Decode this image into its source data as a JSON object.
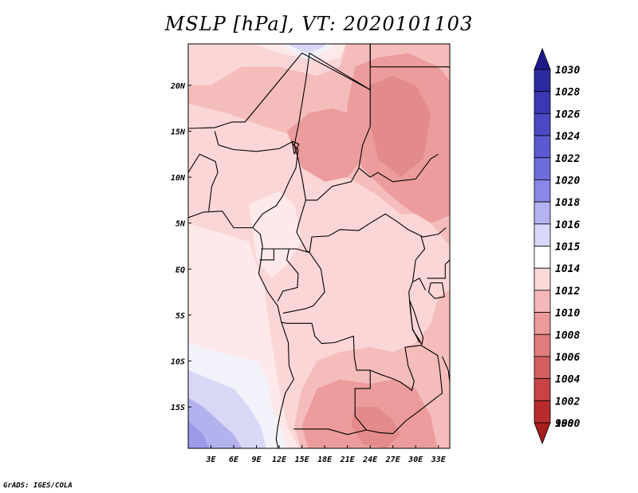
{
  "title": "MSLP [hPa], VT: 2020101103",
  "credit": "GrADS: IGES/COLA",
  "lat_labels": [
    "20N",
    "15N",
    "10N",
    "5N",
    "EQ",
    "5S",
    "10S",
    "15S"
  ],
  "lon_labels": [
    "3E",
    "6E",
    "9E",
    "12E",
    "15E",
    "18E",
    "21E",
    "24E",
    "27E",
    "30E",
    "33E"
  ],
  "colorbar": {
    "levels": [
      "1030",
      "1028",
      "1026",
      "1024",
      "1022",
      "1020",
      "1018",
      "1016",
      "1015",
      "1014",
      "1012",
      "1010",
      "1008",
      "1006",
      "1004",
      "1002",
      "1000",
      "998"
    ],
    "colors": [
      "#1d1a8c",
      "#2b2aa0",
      "#3a38b4",
      "#4a49c4",
      "#5b5ad2",
      "#6e6ddc",
      "#8a88e6",
      "#b4b2f0",
      "#d8d8f8",
      "#ffffff",
      "#fbd8d8",
      "#f5b8b8",
      "#ec9a9a",
      "#e07c7c",
      "#d45e5e",
      "#c84444",
      "#b82c2c",
      "#a81d1d"
    ]
  },
  "map": {
    "lat_range": [
      -19.5,
      24.5
    ],
    "lon_range": [
      0,
      34.5
    ],
    "fill_colors": {
      "p1012": "#fbd6d6",
      "p1010": "#f5bcbc",
      "p1008": "#ec9c9c",
      "p1006": "#e38a8a",
      "p1014": "#fde9e9",
      "p1015": "#f2f2fb",
      "p1016": "#d8d8f6",
      "p1018": "#b4b2ee",
      "p1020": "#9c9ae8"
    }
  }
}
